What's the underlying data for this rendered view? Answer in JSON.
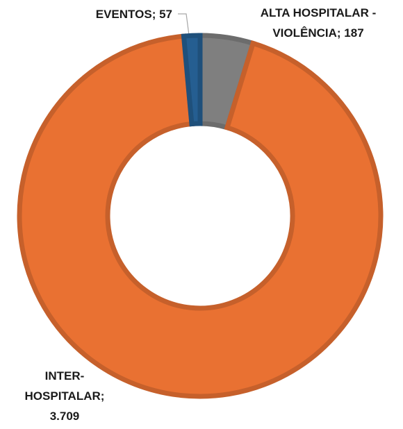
{
  "chart_data": {
    "type": "donut",
    "categories": [
      "ALTA HOSPITALAR - VIOLÊNCIA",
      "INTER-HOSPITALAR",
      "EVENTOS"
    ],
    "values": [
      187,
      3709,
      57
    ],
    "value_labels": [
      "187",
      "3.709",
      "57"
    ],
    "label_separator": "; ",
    "colors": [
      "#7f7f7f",
      "#e97132",
      "#255e91"
    ]
  }
}
